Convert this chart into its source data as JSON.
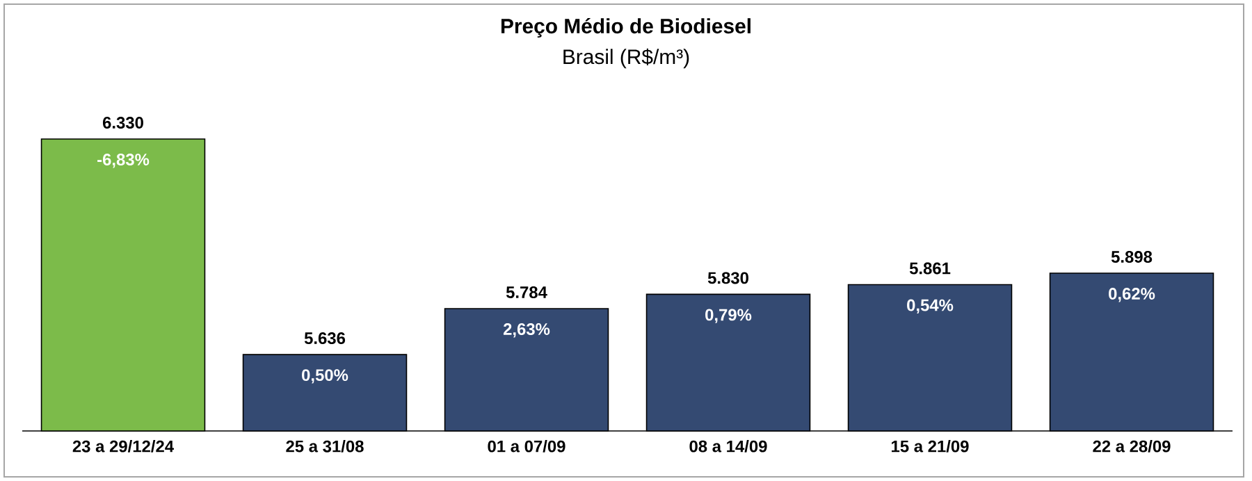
{
  "chart_data": {
    "type": "bar",
    "title": "Preço Médio de Biodiesel",
    "subtitle": "Brasil (R$/m³)",
    "categories": [
      "23 a 29/12/24",
      "25 a 31/08",
      "01 a 07/09",
      "08 a 14/09",
      "15 a 21/09",
      "22 a 28/09"
    ],
    "values": [
      6330,
      5636,
      5784,
      5830,
      5861,
      5898
    ],
    "colors": [
      "#7cbb4a",
      "#344a72",
      "#344a72",
      "#344a72",
      "#344a72",
      "#344a72"
    ],
    "value_labels": [
      "6.330",
      "5.636",
      "5.784",
      "5.830",
      "5.861",
      "5.898"
    ],
    "annotations": [
      {
        "text": "-6,83%",
        "x": "23 a 29/12/24",
        "y": 6330
      },
      {
        "text": "0,50%",
        "x": "25 a 31/08",
        "y": 5636
      },
      {
        "text": "2,63%",
        "x": "01 a 07/09",
        "y": 5784
      },
      {
        "text": "0,79%",
        "x": "08 a 14/09",
        "y": 5830
      },
      {
        "text": "0,54%",
        "x": "15 a 21/09",
        "y": 5861
      },
      {
        "text": "0,62%",
        "x": "22 a 28/09",
        "y": 5898
      }
    ],
    "ylim": [
      5390,
      6330
    ]
  }
}
